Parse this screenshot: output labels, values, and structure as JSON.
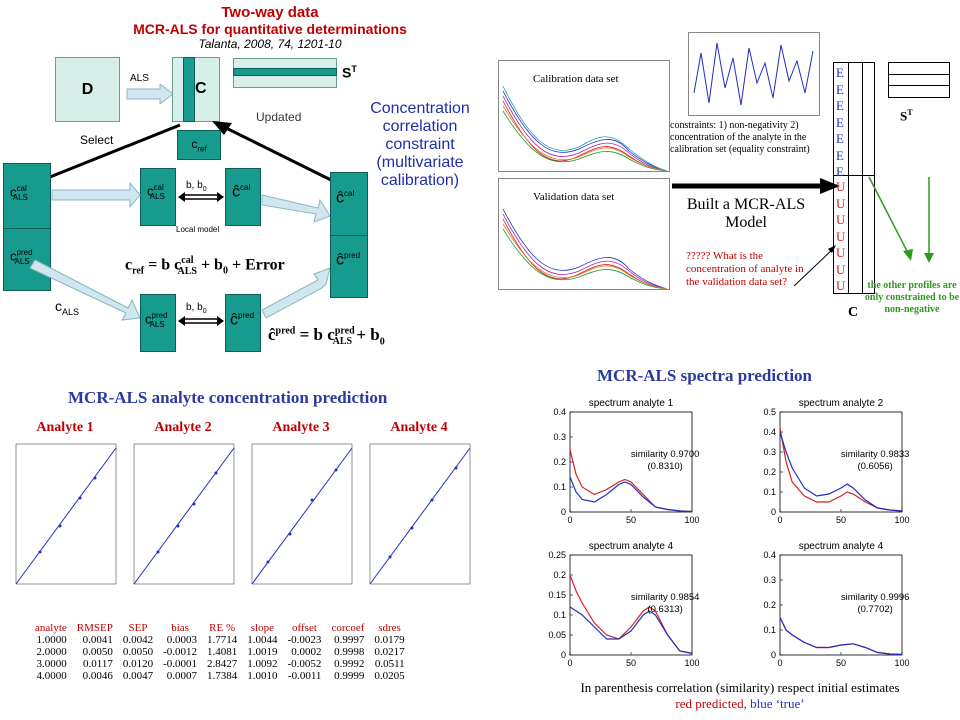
{
  "header": {
    "line1": "Two-way data",
    "line2a": "MCR-ALS",
    "line2b": " for quantitative determinations",
    "ref": "Talanta, 2008, 74, 1201-10"
  },
  "diagram": {
    "D": "D",
    "ALS": "ALS",
    "C": "C",
    "ST": "S",
    "ST_sup": "T",
    "updated": "Updated",
    "select": "Select",
    "cref": "c",
    "cref_sub": "ref",
    "c_als_cal": "c",
    "c_als_cal_sup": "cal",
    "c_als_cal_sub": "ALS",
    "c_als_pred_sup": "pred",
    "c_hat": "ĉ",
    "b_b0": "b, b",
    "b_b0_sub": "0",
    "local_model": "Local model",
    "c_als_label": "c",
    "c_als_label_sub": "ALS",
    "constraint_text": [
      "Concentration",
      "correlation",
      "constraint",
      "(multivariate",
      "calibration)"
    ]
  },
  "equations": {
    "eq1": "c_ref = b c_ALS^cal + b_0 + Error",
    "eq2": "ĉ^pred = b c_ALS^pred + b_0"
  },
  "right_panel": {
    "calibration": "Calibration data set",
    "validation": "Validation data set",
    "constraints": "constraints: 1) non-negativity 2) concentration of the analyte in the calibration set (equality constraint)",
    "built": "Built a MCR-ALS",
    "model": "Model",
    "question": "????? What is the concentration of analyte in the validation data set?",
    "E": "E",
    "U": "U",
    "C": "C",
    "ST": "S",
    "ST_sup": "T",
    "other": "the other profiles are only constrained to be non-negative"
  },
  "concentration_prediction": {
    "title": "MCR-ALS analyte concentration prediction",
    "analytes": [
      "Analyte 1",
      "Analyte 2",
      "Analyte 3",
      "Analyte 4"
    ]
  },
  "table": {
    "headers": [
      "analyte",
      "RMSEP",
      "SEP",
      "bias",
      "RE %",
      "slope",
      "offset",
      "corcoef",
      "sdres"
    ],
    "rows": [
      [
        "1.0000",
        "0.0041",
        "0.0042",
        "0.0003",
        "1.7714",
        "1.0044",
        "-0.0023",
        "0.9997",
        "0.0179"
      ],
      [
        "2.0000",
        "0.0050",
        "0.0050",
        "-0.0012",
        "1.4081",
        "1.0019",
        "0.0002",
        "0.9998",
        "0.0217"
      ],
      [
        "3.0000",
        "0.0117",
        "0.0120",
        "-0.0001",
        "2.8427",
        "1.0092",
        "-0.0052",
        "0.9992",
        "0.0511"
      ],
      [
        "4.0000",
        "0.0046",
        "0.0047",
        "0.0007",
        "1.7384",
        "1.0010",
        "-0.0011",
        "0.9999",
        "0.0205"
      ]
    ]
  },
  "spectra_prediction": {
    "title": "MCR-ALS spectra prediction",
    "footer1": "In parenthesis correlation (similarity) respect  initial estimates",
    "footer2_red": "red predicted, ",
    "footer2_blue": "blue ‘true’"
  },
  "chart_data": [
    {
      "type": "line",
      "title": "spectrum analyte 1",
      "ylim": [
        0,
        0.4
      ],
      "yticks": [
        "0",
        "0.1",
        "0.2",
        "0.3",
        "0.4"
      ],
      "xticks": [
        "0",
        "50",
        "100"
      ],
      "annotation": [
        "similarity 0.9700",
        "(0.8310)"
      ],
      "series": [
        {
          "color": "#d42020",
          "x": [
            0,
            5,
            10,
            20,
            30,
            40,
            45,
            50,
            60,
            70,
            80,
            90,
            100
          ],
          "y": [
            0.25,
            0.15,
            0.1,
            0.07,
            0.09,
            0.12,
            0.13,
            0.12,
            0.07,
            0.02,
            0.01,
            0.005,
            0.002
          ]
        },
        {
          "color": "#2030c0",
          "x": [
            0,
            5,
            10,
            20,
            30,
            40,
            45,
            50,
            60,
            70,
            80,
            90,
            100
          ],
          "y": [
            0.14,
            0.08,
            0.05,
            0.04,
            0.07,
            0.11,
            0.12,
            0.11,
            0.06,
            0.02,
            0.01,
            0.004,
            0.002
          ]
        }
      ]
    },
    {
      "type": "line",
      "title": "spectrum analyte 2",
      "ylim": [
        0,
        0.5
      ],
      "yticks": [
        "0",
        "0.1",
        "0.2",
        "0.3",
        "0.4",
        "0.5"
      ],
      "xticks": [
        "0",
        "50",
        "100"
      ],
      "annotation": [
        "similarity 0.9833",
        "(0.6056)"
      ],
      "series": [
        {
          "color": "#d42020",
          "x": [
            0,
            5,
            10,
            20,
            30,
            40,
            50,
            55,
            60,
            70,
            80,
            90,
            100
          ],
          "y": [
            0.42,
            0.25,
            0.15,
            0.08,
            0.05,
            0.05,
            0.08,
            0.1,
            0.09,
            0.05,
            0.02,
            0.01,
            0.005
          ]
        },
        {
          "color": "#2030c0",
          "x": [
            0,
            5,
            10,
            20,
            30,
            40,
            50,
            55,
            60,
            70,
            80,
            90,
            100
          ],
          "y": [
            0.4,
            0.3,
            0.22,
            0.12,
            0.08,
            0.09,
            0.12,
            0.14,
            0.12,
            0.06,
            0.02,
            0.01,
            0.005
          ]
        }
      ]
    },
    {
      "type": "line",
      "title": "spectrum analyte 4",
      "ylim": [
        0,
        0.25
      ],
      "yticks": [
        "0",
        "0.05",
        "0.1",
        "0.15",
        "0.2",
        "0.25"
      ],
      "xticks": [
        "0",
        "50",
        "100"
      ],
      "annotation": [
        "similarity 0.9854",
        "(0.6313)"
      ],
      "series": [
        {
          "color": "#d42020",
          "x": [
            0,
            5,
            10,
            20,
            30,
            40,
            50,
            60,
            65,
            70,
            80,
            90,
            100
          ],
          "y": [
            0.2,
            0.16,
            0.13,
            0.08,
            0.05,
            0.04,
            0.07,
            0.11,
            0.12,
            0.11,
            0.05,
            0.01,
            0.004
          ]
        },
        {
          "color": "#2030c0",
          "x": [
            0,
            5,
            10,
            20,
            30,
            40,
            50,
            60,
            65,
            70,
            80,
            90,
            100
          ],
          "y": [
            0.12,
            0.11,
            0.1,
            0.07,
            0.04,
            0.04,
            0.06,
            0.1,
            0.11,
            0.1,
            0.05,
            0.01,
            0.004
          ]
        }
      ]
    },
    {
      "type": "line",
      "title": "spectrum analyte 4",
      "ylim": [
        0,
        0.4
      ],
      "yticks": [
        "0",
        "0.1",
        "0.2",
        "0.3",
        "0.4"
      ],
      "xticks": [
        "0",
        "50",
        "100"
      ],
      "annotation": [
        "similarity 0.9996",
        "(0.7702)"
      ],
      "series": [
        {
          "color": "#d42020",
          "x": [
            0,
            5,
            10,
            20,
            30,
            40,
            50,
            60,
            70,
            80,
            90,
            100
          ],
          "y": [
            0.15,
            0.1,
            0.08,
            0.05,
            0.03,
            0.03,
            0.04,
            0.045,
            0.03,
            0.01,
            0.004,
            0.002
          ]
        },
        {
          "color": "#2030c0",
          "x": [
            0,
            5,
            10,
            20,
            30,
            40,
            50,
            60,
            70,
            80,
            90,
            100
          ],
          "y": [
            0.15,
            0.1,
            0.08,
            0.05,
            0.03,
            0.03,
            0.04,
            0.045,
            0.03,
            0.01,
            0.004,
            0.002
          ]
        }
      ]
    }
  ]
}
